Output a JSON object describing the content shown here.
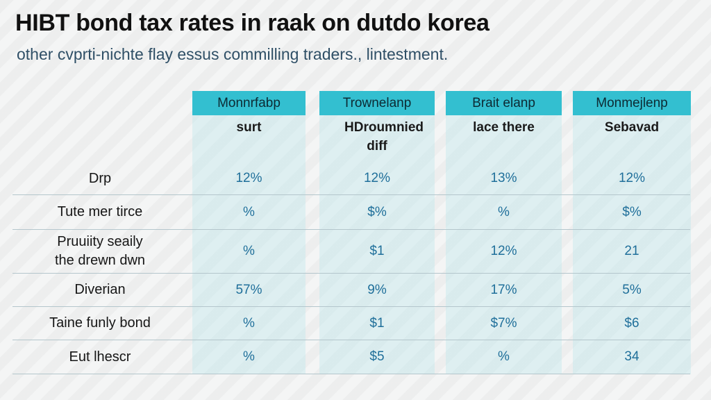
{
  "title": "HIBT bond tax rates in raak on dutdo korea",
  "subtitle": "other cvprti-nichte flay essus commilling traders., lintestment.",
  "columns": [
    {
      "header": "Monnrfabp",
      "sub": "surt"
    },
    {
      "header": "Trownelanp",
      "sub": "HDroumnied diff"
    },
    {
      "header": "Brait elanp",
      "sub": "lace there"
    },
    {
      "header": "Monmejlenp",
      "sub": "Sebavad"
    }
  ],
  "rows": [
    {
      "label": "Drp",
      "values": [
        "12%",
        "12%",
        "13%",
        "12%"
      ]
    },
    {
      "label": "Tute mer tirce",
      "values": [
        "%",
        "$%",
        "%",
        "$%"
      ]
    },
    {
      "label": "Pruuiity seaily the drewn dwn",
      "values": [
        "%",
        "$1",
        "12%",
        "21"
      ]
    },
    {
      "label": "Diverian",
      "values": [
        "57%",
        "9%",
        "17%",
        "5%"
      ]
    },
    {
      "label": "Taine funly bond",
      "values": [
        "%",
        "$1",
        "$7%",
        "$6"
      ]
    },
    {
      "label": "Eut lhescr",
      "values": [
        "%",
        "$5",
        "%",
        "34"
      ]
    }
  ],
  "colors": {
    "header_bg": "#33bfd0",
    "column_band": "#d4eef2",
    "value_text": "#1f6f9a"
  }
}
